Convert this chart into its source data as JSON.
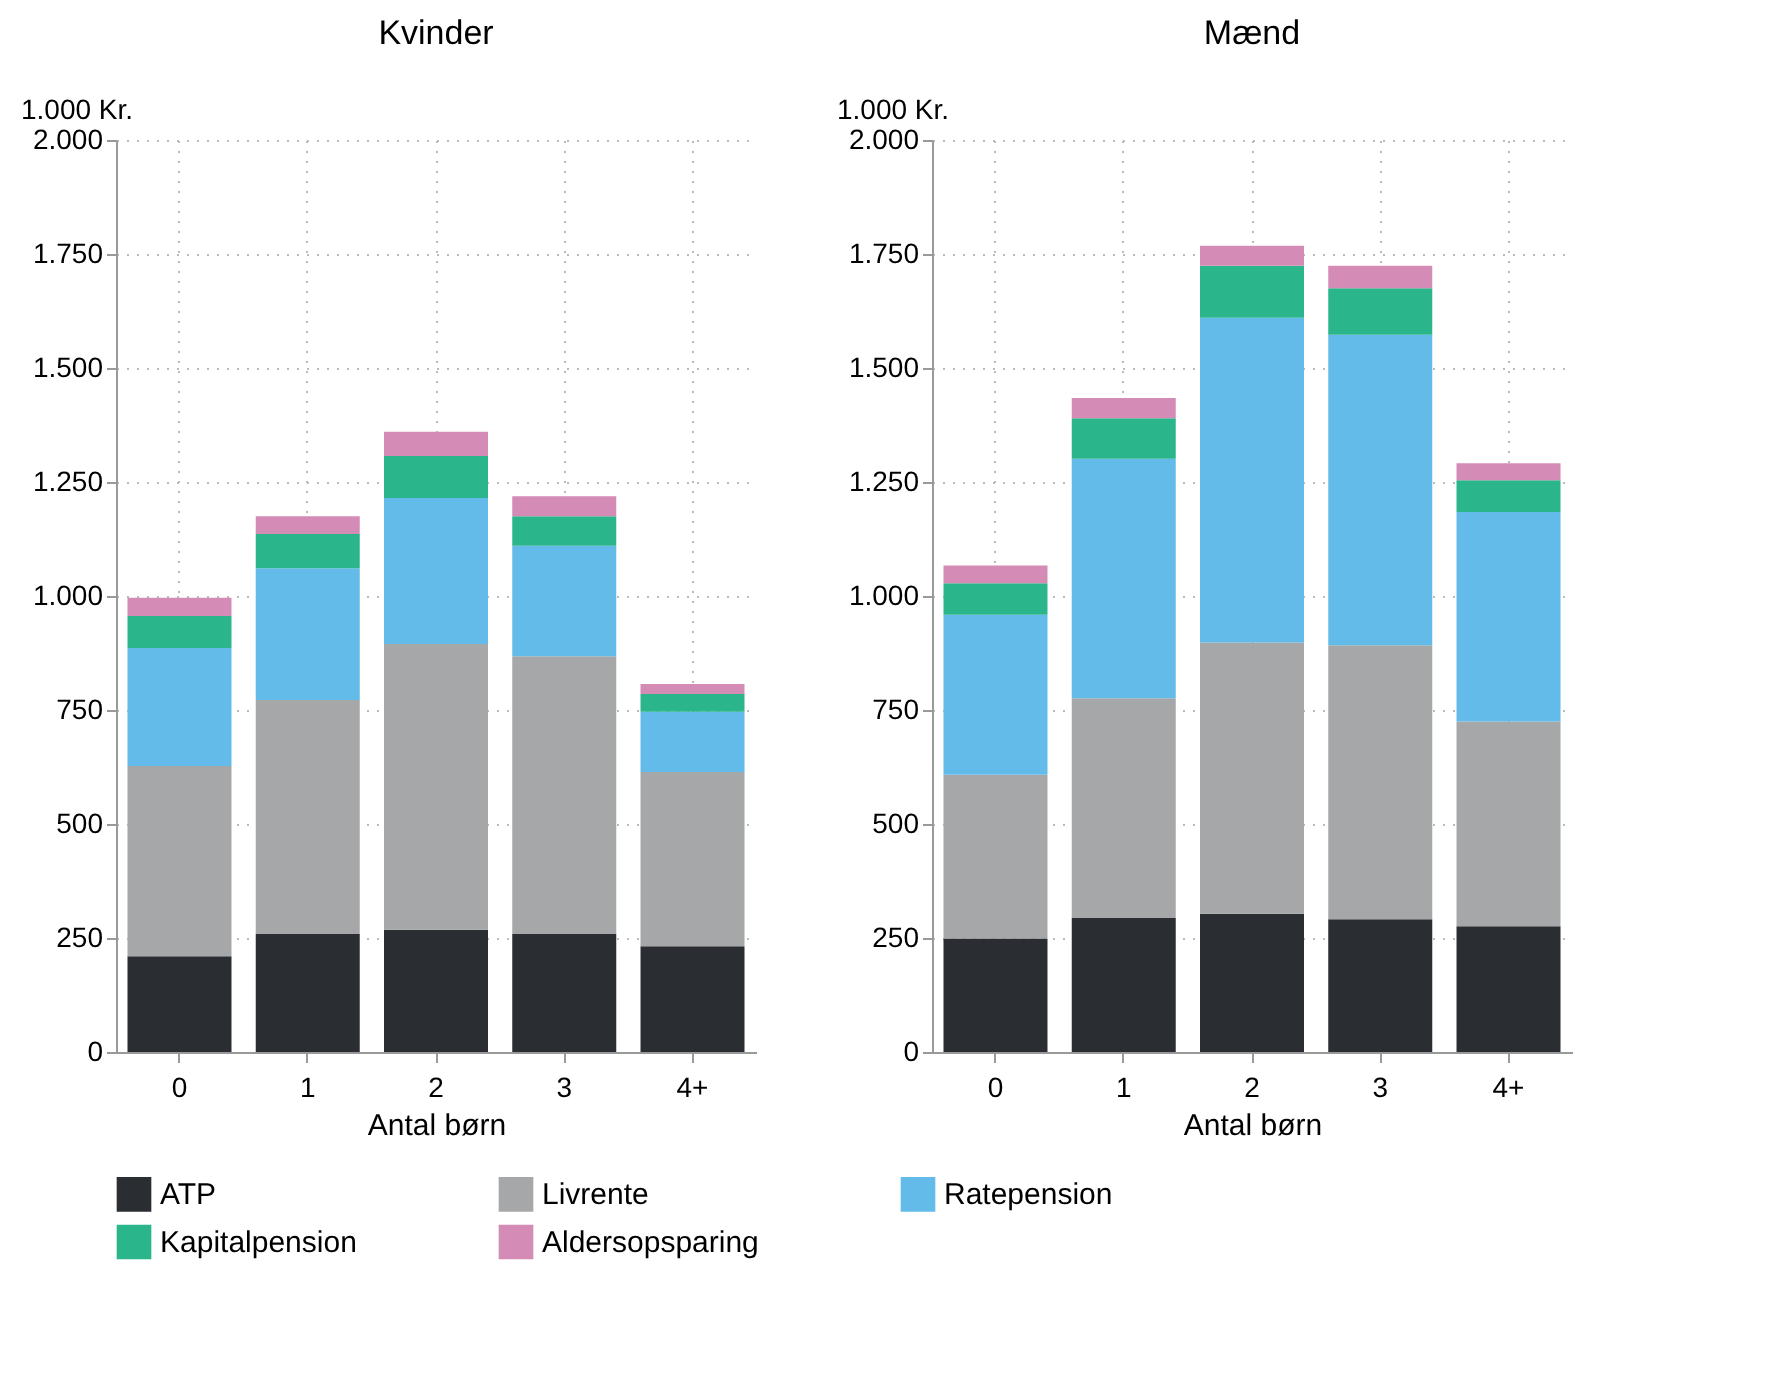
{
  "chart_data": [
    {
      "type": "bar",
      "title": "Kvinder",
      "xlabel": "Antal børn",
      "ylabel": "1.000 Kr.",
      "categories": [
        "0",
        "1",
        "2",
        "3",
        "4+"
      ],
      "stacked": true,
      "grid": true,
      "legend": "bottom",
      "ylim": [
        0,
        2000
      ],
      "yticks": [
        0,
        250,
        500,
        750,
        {
          "value": 1000,
          "label": "1.000"
        },
        {
          "value": 1250,
          "label": "1.250"
        },
        {
          "value": 1500,
          "label": "1.500"
        },
        {
          "value": 1750,
          "label": "1.750"
        },
        {
          "value": 2000,
          "label": "2.000"
        }
      ],
      "series": [
        {
          "name": "ATP",
          "color": "#2a2d31",
          "values": [
            210,
            259,
            268,
            259,
            232
          ]
        },
        {
          "name": "Livrente",
          "color": "#a6a7a9",
          "values": [
            417,
            513,
            627,
            609,
            382
          ]
        },
        {
          "name": "Ratepension",
          "color": "#62bbe9",
          "values": [
            259,
            289,
            320,
            242,
            132
          ]
        },
        {
          "name": "Kapitalpension",
          "color": "#2bb58a",
          "values": [
            70,
            75,
            92,
            65,
            39
          ]
        },
        {
          "name": "Aldersopsparing",
          "color": "#d48bb5",
          "values": [
            40,
            39,
            53,
            44,
            22
          ]
        }
      ]
    },
    {
      "type": "bar",
      "title": "Mænd",
      "xlabel": "Antal børn",
      "ylabel": "1.000 Kr.",
      "categories": [
        "0",
        "1",
        "2",
        "3",
        "4+"
      ],
      "stacked": true,
      "grid": true,
      "legend": "bottom",
      "ylim": [
        0,
        2000
      ],
      "yticks": [
        0,
        250,
        500,
        750,
        {
          "value": 1000,
          "label": "1.000"
        },
        {
          "value": 1250,
          "label": "1.250"
        },
        {
          "value": 1500,
          "label": "1.500"
        },
        {
          "value": 1750,
          "label": "1.750"
        },
        {
          "value": 2000,
          "label": "2.000"
        }
      ],
      "series": [
        {
          "name": "ATP",
          "color": "#2a2d31",
          "values": [
            249,
            294,
            303,
            291,
            276
          ]
        },
        {
          "name": "Livrente",
          "color": "#a6a7a9",
          "values": [
            359,
            482,
            595,
            601,
            449
          ]
        },
        {
          "name": "Ratepension",
          "color": "#62bbe9",
          "values": [
            351,
            525,
            712,
            681,
            459
          ]
        },
        {
          "name": "Kapitalpension",
          "color": "#2bb58a",
          "values": [
            69,
            89,
            114,
            102,
            70
          ]
        },
        {
          "name": "Aldersopsparing",
          "color": "#d48bb5",
          "values": [
            39,
            44,
            44,
            49,
            37
          ]
        }
      ]
    }
  ]
}
